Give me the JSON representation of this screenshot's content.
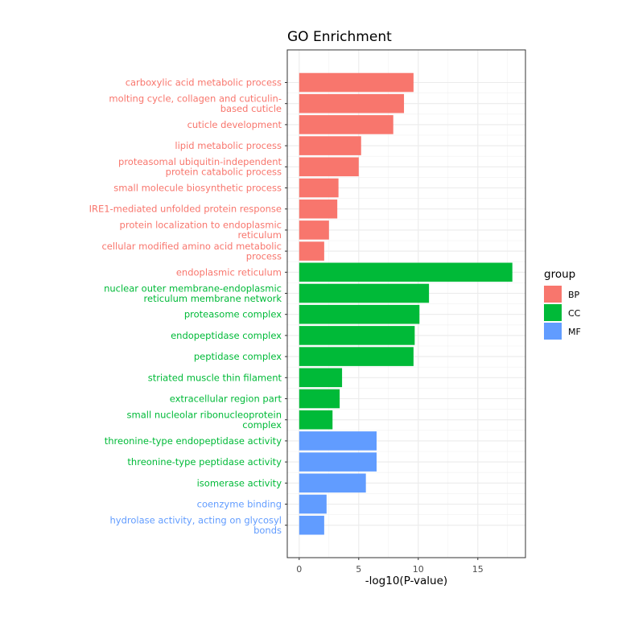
{
  "chart_data": {
    "type": "bar",
    "orientation": "horizontal",
    "title": "GO Enrichment",
    "xlabel": "-log10(P-value)",
    "ylabel": "",
    "xlim": [
      -1,
      19
    ],
    "x_ticks": [
      0,
      5,
      10,
      15
    ],
    "grid": true,
    "legend": {
      "title": "group",
      "placement": "right",
      "entries": [
        {
          "name": "BP",
          "color": "#F8766D"
        },
        {
          "name": "CC",
          "color": "#00BA38"
        },
        {
          "name": "MF",
          "color": "#619CFF"
        }
      ]
    },
    "categories": [
      {
        "label": [
          "carboxylic acid metabolic process"
        ],
        "value": 9.6,
        "group": "BP",
        "label_color": "#F8766D"
      },
      {
        "label": [
          "molting cycle, collagen and cuticulin-",
          "based cuticle"
        ],
        "value": 8.8,
        "group": "BP",
        "label_color": "#F8766D"
      },
      {
        "label": [
          "cuticle development"
        ],
        "value": 7.9,
        "group": "BP",
        "label_color": "#F8766D"
      },
      {
        "label": [
          "lipid metabolic process"
        ],
        "value": 5.2,
        "group": "BP",
        "label_color": "#F8766D"
      },
      {
        "label": [
          "proteasomal ubiquitin-independent",
          "protein catabolic process"
        ],
        "value": 5.0,
        "group": "BP",
        "label_color": "#F8766D"
      },
      {
        "label": [
          "small molecule biosynthetic process"
        ],
        "value": 3.3,
        "group": "BP",
        "label_color": "#F8766D"
      },
      {
        "label": [
          "IRE1-mediated unfolded protein response"
        ],
        "value": 3.2,
        "group": "BP",
        "label_color": "#F8766D"
      },
      {
        "label": [
          "protein localization to endoplasmic",
          "reticulum"
        ],
        "value": 2.5,
        "group": "BP",
        "label_color": "#F8766D"
      },
      {
        "label": [
          "cellular modified amino acid metabolic",
          "process"
        ],
        "value": 2.1,
        "group": "BP",
        "label_color": "#F8766D"
      },
      {
        "label": [
          "endoplasmic reticulum"
        ],
        "value": 17.9,
        "group": "CC",
        "label_color": "#F8766D"
      },
      {
        "label": [
          "nuclear outer membrane-endoplasmic",
          "reticulum membrane network"
        ],
        "value": 10.9,
        "group": "CC",
        "label_color": "#00BA38"
      },
      {
        "label": [
          "proteasome complex"
        ],
        "value": 10.1,
        "group": "CC",
        "label_color": "#00BA38"
      },
      {
        "label": [
          "endopeptidase complex"
        ],
        "value": 9.7,
        "group": "CC",
        "label_color": "#00BA38"
      },
      {
        "label": [
          "peptidase complex"
        ],
        "value": 9.6,
        "group": "CC",
        "label_color": "#00BA38"
      },
      {
        "label": [
          "striated muscle thin filament"
        ],
        "value": 3.6,
        "group": "CC",
        "label_color": "#00BA38"
      },
      {
        "label": [
          "extracellular region part"
        ],
        "value": 3.4,
        "group": "CC",
        "label_color": "#00BA38"
      },
      {
        "label": [
          "small nucleolar ribonucleoprotein",
          "complex"
        ],
        "value": 2.8,
        "group": "CC",
        "label_color": "#00BA38"
      },
      {
        "label": [
          "threonine-type endopeptidase activity"
        ],
        "value": 6.5,
        "group": "MF",
        "label_color": "#00BA38"
      },
      {
        "label": [
          "threonine-type peptidase activity"
        ],
        "value": 6.5,
        "group": "MF",
        "label_color": "#00BA38"
      },
      {
        "label": [
          "isomerase activity"
        ],
        "value": 5.6,
        "group": "MF",
        "label_color": "#00BA38"
      },
      {
        "label": [
          "coenzyme binding"
        ],
        "value": 2.3,
        "group": "MF",
        "label_color": "#619CFF"
      },
      {
        "label": [
          "hydrolase activity, acting on glycosyl",
          "bonds"
        ],
        "value": 2.1,
        "group": "MF",
        "label_color": "#619CFF"
      }
    ]
  }
}
